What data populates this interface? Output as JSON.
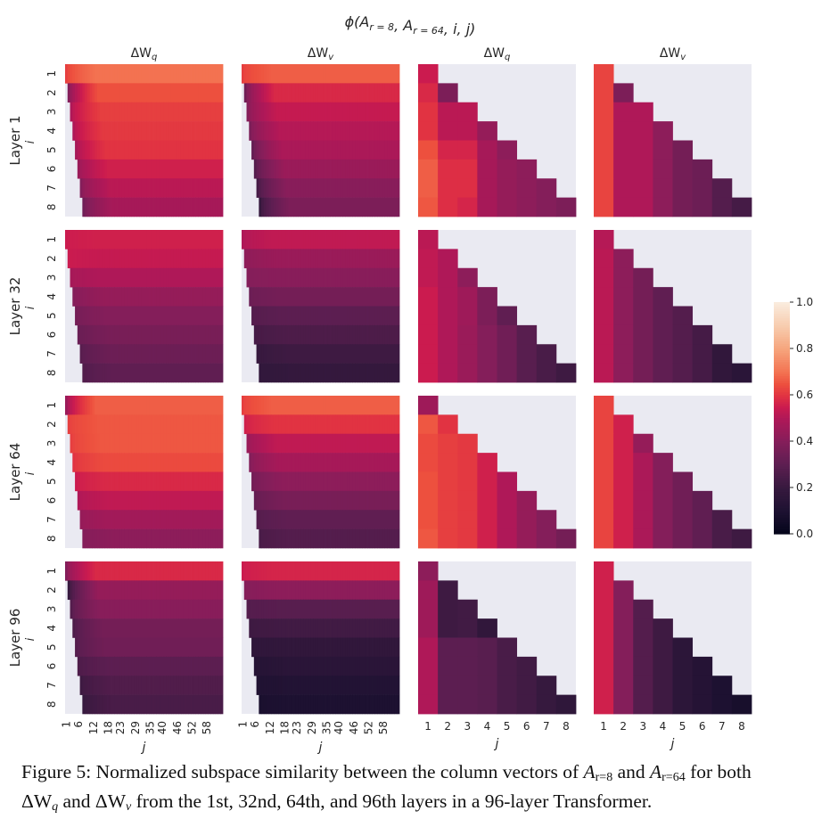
{
  "chart_data": {
    "type": "heatmap",
    "title": "φ(A_{r=8}, A_{r=64}, i, j)",
    "colormap": "rocket",
    "colorbar": {
      "min": 0.0,
      "max": 1.0,
      "ticks": [
        "0.0",
        "0.2",
        "0.4",
        "0.6",
        "0.8",
        "1.0"
      ]
    },
    "column_titles": [
      "ΔW_q",
      "ΔW_v",
      "ΔW_q",
      "ΔW_v"
    ],
    "row_labels": [
      "Layer 1",
      "Layer 32",
      "Layer 64",
      "Layer 96"
    ],
    "ylabel": "i",
    "xlabel": "j",
    "i_ticks": [
      "1",
      "2",
      "3",
      "4",
      "5",
      "6",
      "7",
      "8"
    ],
    "j_ticks_wide": [
      "1",
      "6",
      "12",
      "18",
      "23",
      "29",
      "35",
      "40",
      "46",
      "52",
      "58"
    ],
    "j_ticks_narrow": [
      "1",
      "2",
      "3",
      "4",
      "5",
      "6",
      "7",
      "8"
    ],
    "wide_panels_note": "j ranges 1..64; cells with j < i are masked",
    "wide_panels": {
      "layer1_q": {
        "start": [
          0.62,
          0.4,
          0.5,
          0.5,
          0.48,
          0.45,
          0.4,
          0.35
        ],
        "plateau": [
          0.7,
          0.65,
          0.62,
          0.61,
          0.6,
          0.56,
          0.52,
          0.48
        ]
      },
      "layer1_v": {
        "start": [
          0.62,
          0.35,
          0.4,
          0.38,
          0.32,
          0.28,
          0.24,
          0.2
        ],
        "plateau": [
          0.67,
          0.58,
          0.54,
          0.51,
          0.49,
          0.45,
          0.41,
          0.38
        ]
      },
      "layer32_q": {
        "start": [
          0.55,
          0.55,
          0.48,
          0.4,
          0.36,
          0.33,
          0.29,
          0.27
        ],
        "plateau": [
          0.56,
          0.54,
          0.5,
          0.44,
          0.4,
          0.37,
          0.34,
          0.31
        ]
      },
      "layer32_v": {
        "start": [
          0.5,
          0.42,
          0.4,
          0.34,
          0.28,
          0.24,
          0.2,
          0.18
        ],
        "plateau": [
          0.53,
          0.45,
          0.41,
          0.36,
          0.3,
          0.26,
          0.22,
          0.19
        ]
      },
      "layer64_q": {
        "start": [
          0.45,
          0.62,
          0.62,
          0.6,
          0.55,
          0.5,
          0.44,
          0.4
        ],
        "plateau": [
          0.67,
          0.66,
          0.66,
          0.64,
          0.58,
          0.53,
          0.47,
          0.42
        ]
      },
      "layer64_v": {
        "start": [
          0.62,
          0.56,
          0.45,
          0.4,
          0.36,
          0.32,
          0.28,
          0.25
        ],
        "plateau": [
          0.67,
          0.6,
          0.53,
          0.48,
          0.42,
          0.37,
          0.31,
          0.28
        ]
      },
      "layer96_q": {
        "start": [
          0.4,
          0.2,
          0.28,
          0.26,
          0.28,
          0.26,
          0.22,
          0.2
        ],
        "plateau": [
          0.58,
          0.44,
          0.41,
          0.36,
          0.35,
          0.3,
          0.27,
          0.25
        ]
      },
      "layer96_v": {
        "start": [
          0.55,
          0.4,
          0.28,
          0.22,
          0.17,
          0.13,
          0.11,
          0.09
        ],
        "plateau": [
          0.57,
          0.42,
          0.29,
          0.23,
          0.18,
          0.15,
          0.12,
          0.1
        ]
      }
    },
    "narrow_panels": {
      "layer1_q": [
        [
          0.55
        ],
        [
          0.58,
          0.38
        ],
        [
          0.6,
          0.52,
          0.52
        ],
        [
          0.6,
          0.52,
          0.52,
          0.44
        ],
        [
          0.65,
          0.57,
          0.57,
          0.48,
          0.42
        ],
        [
          0.67,
          0.59,
          0.59,
          0.48,
          0.44,
          0.42
        ],
        [
          0.67,
          0.59,
          0.59,
          0.48,
          0.44,
          0.42,
          0.4
        ],
        [
          0.66,
          0.59,
          0.57,
          0.48,
          0.44,
          0.42,
          0.4,
          0.38
        ]
      ],
      "layer1_v": [
        [
          0.63
        ],
        [
          0.63,
          0.38
        ],
        [
          0.63,
          0.5,
          0.5
        ],
        [
          0.63,
          0.5,
          0.5,
          0.42
        ],
        [
          0.63,
          0.5,
          0.5,
          0.42,
          0.36
        ],
        [
          0.63,
          0.5,
          0.5,
          0.42,
          0.36,
          0.34
        ],
        [
          0.63,
          0.5,
          0.5,
          0.42,
          0.36,
          0.34,
          0.28
        ],
        [
          0.63,
          0.5,
          0.5,
          0.42,
          0.36,
          0.34,
          0.28,
          0.24
        ]
      ],
      "layer32_q": [
        [
          0.52
        ],
        [
          0.53,
          0.5
        ],
        [
          0.53,
          0.5,
          0.42
        ],
        [
          0.55,
          0.5,
          0.46,
          0.38
        ],
        [
          0.55,
          0.5,
          0.46,
          0.38,
          0.31
        ],
        [
          0.55,
          0.5,
          0.45,
          0.4,
          0.35,
          0.29
        ],
        [
          0.55,
          0.5,
          0.45,
          0.4,
          0.35,
          0.29,
          0.25
        ],
        [
          0.55,
          0.5,
          0.45,
          0.4,
          0.35,
          0.29,
          0.25,
          0.22
        ]
      ],
      "layer32_v": [
        [
          0.51
        ],
        [
          0.52,
          0.42
        ],
        [
          0.52,
          0.42,
          0.36
        ],
        [
          0.52,
          0.42,
          0.36,
          0.31
        ],
        [
          0.52,
          0.42,
          0.36,
          0.31,
          0.28
        ],
        [
          0.52,
          0.42,
          0.36,
          0.31,
          0.28,
          0.24
        ],
        [
          0.52,
          0.42,
          0.36,
          0.31,
          0.28,
          0.24,
          0.18
        ],
        [
          0.52,
          0.42,
          0.36,
          0.31,
          0.28,
          0.24,
          0.18,
          0.15
        ]
      ],
      "layer64_q": [
        [
          0.46
        ],
        [
          0.66,
          0.6
        ],
        [
          0.64,
          0.62,
          0.61
        ],
        [
          0.64,
          0.62,
          0.61,
          0.56
        ],
        [
          0.65,
          0.62,
          0.61,
          0.56,
          0.5
        ],
        [
          0.65,
          0.62,
          0.61,
          0.56,
          0.5,
          0.44
        ],
        [
          0.65,
          0.62,
          0.61,
          0.56,
          0.5,
          0.44,
          0.4
        ],
        [
          0.66,
          0.62,
          0.61,
          0.56,
          0.5,
          0.44,
          0.4,
          0.36
        ]
      ],
      "layer64_v": [
        [
          0.63
        ],
        [
          0.63,
          0.56
        ],
        [
          0.63,
          0.56,
          0.44
        ],
        [
          0.63,
          0.56,
          0.49,
          0.4
        ],
        [
          0.63,
          0.56,
          0.49,
          0.4,
          0.35
        ],
        [
          0.63,
          0.56,
          0.49,
          0.4,
          0.35,
          0.31
        ],
        [
          0.63,
          0.56,
          0.49,
          0.4,
          0.35,
          0.31,
          0.25
        ],
        [
          0.63,
          0.56,
          0.49,
          0.4,
          0.35,
          0.31,
          0.25,
          0.22
        ]
      ],
      "layer96_q": [
        [
          0.42
        ],
        [
          0.46,
          0.22
        ],
        [
          0.46,
          0.22,
          0.23
        ],
        [
          0.46,
          0.22,
          0.23,
          0.18
        ],
        [
          0.5,
          0.3,
          0.3,
          0.29,
          0.25
        ],
        [
          0.5,
          0.3,
          0.3,
          0.29,
          0.25,
          0.23
        ],
        [
          0.5,
          0.3,
          0.3,
          0.29,
          0.25,
          0.23,
          0.2
        ],
        [
          0.5,
          0.3,
          0.3,
          0.29,
          0.25,
          0.23,
          0.2,
          0.17
        ]
      ],
      "layer96_v": [
        [
          0.56
        ],
        [
          0.56,
          0.4
        ],
        [
          0.56,
          0.4,
          0.28
        ],
        [
          0.56,
          0.4,
          0.28,
          0.22
        ],
        [
          0.56,
          0.4,
          0.28,
          0.22,
          0.16
        ],
        [
          0.56,
          0.4,
          0.28,
          0.22,
          0.16,
          0.13
        ],
        [
          0.56,
          0.4,
          0.28,
          0.22,
          0.16,
          0.13,
          0.1
        ],
        [
          0.56,
          0.4,
          0.28,
          0.22,
          0.16,
          0.13,
          0.1,
          0.08
        ]
      ]
    },
    "mask_color": "#eaeaf2"
  },
  "caption": {
    "line1_a": "Figure 5: Normalized subspace similarity between the column vectors of ",
    "A": "A",
    "sub1": "r=8",
    "and": " and ",
    "sub2": "r=64",
    "line1_b": " for both",
    "dW": "ΔW",
    "q": "q",
    "v": "v",
    "line2_b": " from the 1st, 32nd, 64th, and 96th layers in a 96-layer Transformer."
  }
}
